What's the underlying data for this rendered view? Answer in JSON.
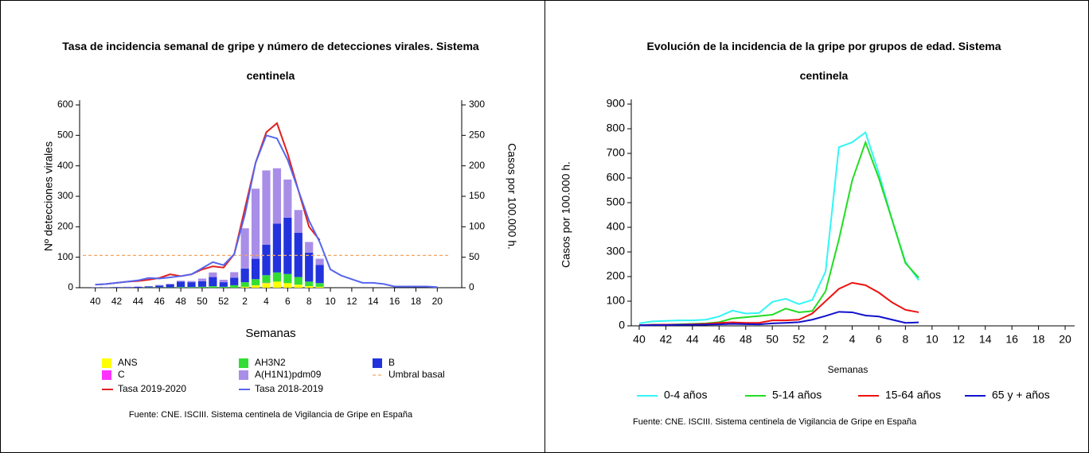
{
  "chart_data": [
    {
      "type": "bar",
      "stacked": true,
      "title": "Tasa de incidencia semanal de gripe y número de detecciones virales. Sistema centinela",
      "xlabel": "Semanas",
      "ylabel": "Nº detecciones virales",
      "y2label": "Casos por 100.000 h.",
      "source": "Fuente: CNE. ISCIII. Sistema centinela de Vigilancia de Gripe en España",
      "categories": [
        40,
        null,
        42,
        null,
        44,
        null,
        46,
        null,
        48,
        null,
        50,
        null,
        52,
        null,
        2,
        null,
        4,
        null,
        6,
        null,
        8,
        null,
        10,
        null,
        12,
        null,
        14,
        null,
        16,
        null,
        18,
        null,
        20
      ],
      "ylim": [
        0,
        600
      ],
      "yticks": [
        0,
        100,
        200,
        300,
        400,
        500,
        600
      ],
      "y2lim": [
        0,
        300
      ],
      "y2ticks": [
        0,
        50,
        100,
        150,
        200,
        250,
        300
      ],
      "series": [
        {
          "name": "ANS",
          "color": "#ffff00",
          "values": [
            0,
            0,
            0,
            0,
            0,
            0,
            0,
            0,
            0,
            0,
            0,
            0,
            0,
            0,
            3,
            8,
            15,
            20,
            15,
            10,
            5,
            3,
            null,
            null,
            null,
            null,
            null,
            null,
            null,
            null,
            null,
            null,
            null
          ]
        },
        {
          "name": "C",
          "color": "#ff33ff",
          "values": [
            0,
            0,
            0,
            0,
            0,
            0,
            0,
            0,
            0,
            0,
            0,
            0,
            0,
            0,
            0,
            0,
            1,
            0,
            0,
            0,
            0,
            0,
            null,
            null,
            null,
            null,
            null,
            null,
            null,
            null,
            null,
            null,
            null
          ]
        },
        {
          "name": "AH3N2",
          "color": "#33dd33",
          "values": [
            0,
            0,
            0,
            0,
            0,
            1,
            1,
            1,
            2,
            2,
            3,
            5,
            3,
            8,
            15,
            20,
            25,
            30,
            30,
            25,
            15,
            12,
            null,
            null,
            null,
            null,
            null,
            null,
            null,
            null,
            null,
            null,
            null
          ]
        },
        {
          "name": "B",
          "color": "#2233dd",
          "values": [
            1,
            1,
            2,
            2,
            3,
            3,
            6,
            10,
            18,
            16,
            18,
            30,
            15,
            25,
            45,
            67,
            100,
            160,
            185,
            145,
            95,
            60,
            null,
            null,
            null,
            null,
            null,
            null,
            null,
            null,
            null,
            null,
            null
          ]
        },
        {
          "name": "A(H1N1)pdm09",
          "color": "#a98ee8",
          "values": [
            0,
            0,
            0,
            1,
            1,
            1,
            2,
            2,
            3,
            4,
            9,
            15,
            8,
            18,
            132,
            230,
            244,
            182,
            125,
            75,
            35,
            20,
            null,
            null,
            null,
            null,
            null,
            null,
            null,
            null,
            null,
            null,
            null
          ]
        },
        {
          "name": "Umbral basal",
          "color": "#f4a460",
          "type": "threshold",
          "axis": "y2",
          "value": 53
        },
        {
          "name": "Tasa 2019-2020",
          "color": "#e02020",
          "type": "line",
          "axis": "y2",
          "values": [
            5,
            6,
            8,
            10,
            11,
            13,
            16,
            22,
            19,
            22,
            30,
            35,
            33,
            55,
            130,
            205,
            255,
            270,
            220,
            160,
            100,
            78,
            null,
            null,
            null,
            null,
            null,
            null,
            null,
            null,
            null,
            null,
            null
          ]
        },
        {
          "name": "Tasa 2018-2019",
          "color": "#5566ee",
          "type": "line",
          "axis": "y2",
          "values": [
            5,
            6,
            8,
            10,
            12,
            16,
            15,
            17,
            19,
            22,
            32,
            42,
            37,
            55,
            120,
            205,
            250,
            245,
            210,
            160,
            110,
            75,
            30,
            20,
            14,
            8,
            8,
            6,
            2,
            2,
            2,
            2,
            1
          ]
        }
      ]
    },
    {
      "type": "line",
      "title": "Evolución de la incidencia de la gripe por grupos de edad. Sistema centinela",
      "xlabel": "Semanas",
      "ylabel": "Casos por 100.000 h.",
      "source": "Fuente: CNE. ISCIII. Sistema centinela de Vigilancia de Gripe en España",
      "categories": [
        40,
        null,
        42,
        null,
        44,
        null,
        46,
        null,
        48,
        null,
        50,
        null,
        52,
        null,
        2,
        null,
        4,
        null,
        6,
        null,
        8,
        null,
        10,
        null,
        12,
        null,
        14,
        null,
        16,
        null,
        18,
        null,
        20
      ],
      "ylim": [
        0,
        900
      ],
      "yticks": [
        0,
        100,
        200,
        300,
        400,
        500,
        600,
        700,
        800,
        900
      ],
      "series": [
        {
          "name": "0-4 años",
          "color": "#33f5f5",
          "values": [
            10,
            18,
            20,
            22,
            22,
            25,
            38,
            62,
            50,
            52,
            97,
            110,
            88,
            105,
            220,
            725,
            745,
            785,
            620,
            430,
            260,
            185,
            null,
            null,
            null,
            null,
            null,
            null,
            null,
            null,
            null,
            null,
            null
          ]
        },
        {
          "name": "5-14 años",
          "color": "#22dd22",
          "values": [
            2,
            5,
            5,
            6,
            8,
            10,
            15,
            30,
            35,
            40,
            45,
            70,
            55,
            60,
            140,
            350,
            590,
            745,
            600,
            430,
            255,
            195,
            null,
            null,
            null,
            null,
            null,
            null,
            null,
            null,
            null,
            null,
            null
          ]
        },
        {
          "name": "15-64 años",
          "color": "#ee1111",
          "values": [
            3,
            4,
            5,
            5,
            6,
            8,
            12,
            14,
            12,
            12,
            22,
            22,
            25,
            50,
            100,
            150,
            175,
            165,
            135,
            95,
            65,
            55,
            null,
            null,
            null,
            null,
            null,
            null,
            null,
            null,
            null,
            null,
            null
          ]
        },
        {
          "name": "65 y + años",
          "color": "#1111cc",
          "values": [
            2,
            3,
            3,
            4,
            4,
            5,
            6,
            8,
            7,
            6,
            10,
            12,
            15,
            25,
            40,
            57,
            55,
            42,
            38,
            25,
            12,
            14,
            null,
            null,
            null,
            null,
            null,
            null,
            null,
            null,
            null,
            null,
            null
          ]
        }
      ]
    }
  ]
}
